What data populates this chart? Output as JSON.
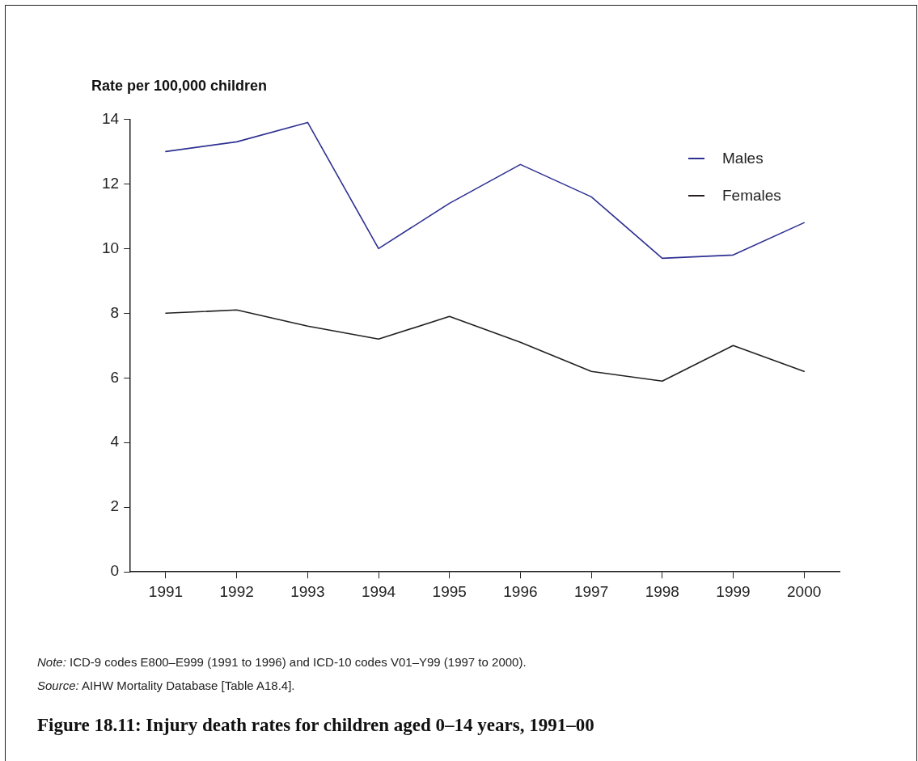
{
  "chart_data": {
    "type": "line",
    "title": "Figure 18.11: Injury death rates for children aged 0–14 years, 1991–00",
    "ylabel": "Rate per 100,000 children",
    "categories": [
      "1991",
      "1992",
      "1993",
      "1994",
      "1995",
      "1996",
      "1997",
      "1998",
      "1999",
      "2000"
    ],
    "series": [
      {
        "name": "Males",
        "color": "#2e3192",
        "values": [
          13.0,
          13.3,
          13.9,
          10.0,
          11.4,
          12.6,
          11.6,
          9.7,
          9.8,
          10.8
        ]
      },
      {
        "name": "Females",
        "color": "#231f20",
        "values": [
          8.0,
          8.1,
          7.6,
          7.2,
          7.9,
          7.1,
          6.2,
          5.9,
          7.0,
          6.2
        ]
      }
    ],
    "ylim": [
      0,
      14
    ],
    "yticks": [
      0,
      2,
      4,
      6,
      8,
      10,
      12,
      14
    ],
    "grid": false,
    "legend": "top right",
    "marker": "none",
    "line_style": "solid",
    "annotations": [
      "Note: ICD-9 codes E800–E999 (1991 to 1996) and ICD-10 codes V01–Y99 (1997 to 2000).",
      "Source: AIHW Mortality Database [Table A18.4]."
    ]
  }
}
